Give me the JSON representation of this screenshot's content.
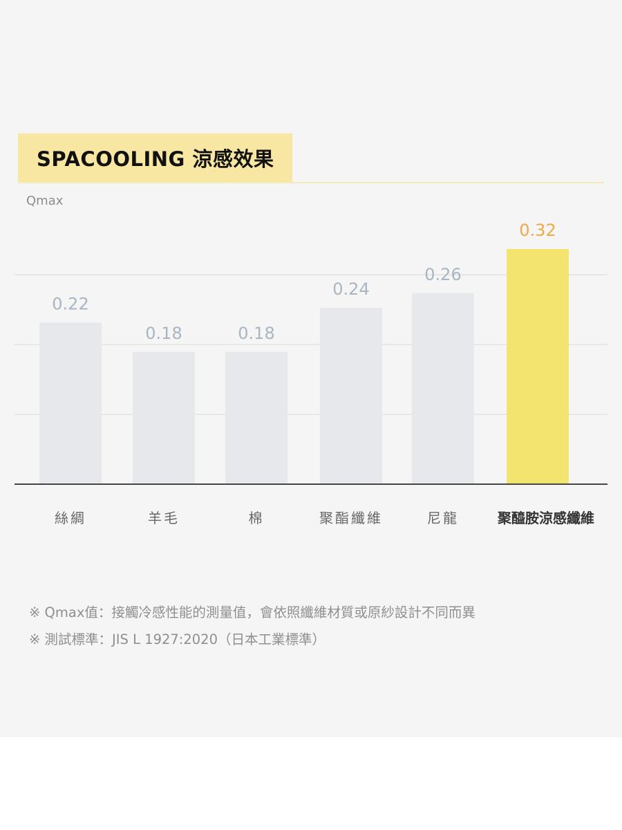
{
  "chart_data": {
    "type": "bar",
    "title": "SPACOOLING 涼感效果",
    "ylabel": "Qmax",
    "xlabel": "",
    "categories": [
      "絲綢",
      "羊毛",
      "棉",
      "聚酯纖維",
      "尼龍",
      "聚醯胺涼感纖維"
    ],
    "values": [
      0.22,
      0.18,
      0.18,
      0.24,
      0.26,
      0.32
    ],
    "data_labels": [
      "0.22",
      "0.18",
      "0.18",
      "0.24",
      "0.26",
      "0.32"
    ],
    "highlight_index": 5,
    "ylim": [
      0,
      0.35
    ],
    "grid": true,
    "colors": {
      "bar": "#e6e8eb",
      "bar_highlight": "#f3e46f",
      "label": "#a9b5c1",
      "label_highlight": "#f0a845",
      "category": "#666666",
      "category_highlight": "#333333",
      "gridline": "#d9d9d9",
      "baseline": "#444444"
    }
  },
  "footnotes": [
    "※ Qmax值：接觸冷感性能的測量值，會依照纖維材質或原紗設計不同而異",
    "※ 測試標準：JIS L 1927:2020（日本工業標準）"
  ]
}
